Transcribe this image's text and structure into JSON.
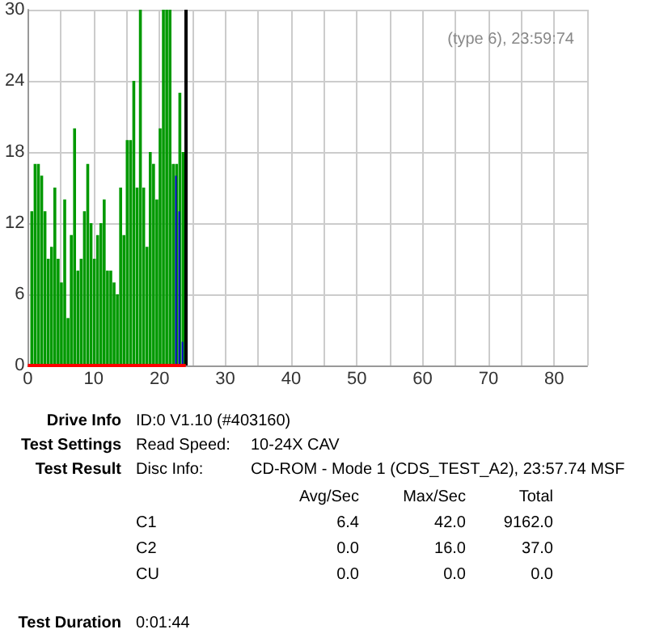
{
  "chart_data": {
    "type": "bar",
    "xlim": [
      0,
      85
    ],
    "ylim": [
      0,
      30
    ],
    "xticks": [
      0,
      {
        "value": 5,
        "label": null
      },
      10,
      {
        "value": 15,
        "label": null
      },
      20,
      {
        "value": 25,
        "label": null
      },
      30,
      {
        "value": 35,
        "label": null
      },
      40,
      {
        "value": 45,
        "label": null
      },
      50,
      {
        "value": 55,
        "label": null
      },
      60,
      {
        "value": 65,
        "label": null
      },
      70,
      {
        "value": 75,
        "label": null
      },
      80,
      {
        "value": 85,
        "label": null
      }
    ],
    "yticks": [
      0,
      6,
      12,
      18,
      24,
      30
    ],
    "grid": true,
    "series": [
      {
        "color": "#009900",
        "x": [
          0.5,
          1,
          1.5,
          2,
          2.5,
          3,
          3.5,
          4,
          4.5,
          5,
          5.5,
          6,
          6.5,
          7,
          7.5,
          8,
          8.5,
          9,
          9.5,
          10,
          10.5,
          11,
          11.5,
          12,
          12.5,
          13,
          13.5,
          14,
          14.5,
          15,
          15.5,
          16,
          16.5,
          17,
          17.5,
          18,
          18.5,
          19,
          19.5,
          20,
          20.5,
          21,
          21.5,
          22,
          22.5,
          23,
          23.5
        ],
        "values": [
          13,
          17,
          17,
          16,
          13,
          9,
          10,
          15,
          9,
          7,
          14,
          4,
          11,
          20,
          8,
          9,
          13,
          17,
          12,
          9,
          11,
          12,
          14,
          8,
          8,
          7,
          6,
          15,
          11,
          19,
          19,
          24,
          15,
          30,
          15,
          10,
          18,
          17,
          14,
          20,
          30,
          30,
          30,
          17,
          17,
          23,
          18
        ]
      },
      {
        "color": "#0000cc",
        "x": [
          22.5,
          23,
          23.5
        ],
        "values": [
          16,
          13,
          2
        ]
      },
      {
        "type": "line",
        "color": "#ff0000",
        "x": [
          0,
          24
        ],
        "values": [
          0,
          0
        ],
        "marker": "none"
      }
    ],
    "ref_lines": [
      {
        "axis": "x",
        "value": 24,
        "color": "#000000"
      }
    ],
    "annotations": [
      "(type 6), 23:59:74",
      "Drive Info",
      "ID:0 V1.10 (#403160)",
      "Test Settings",
      "Read Speed:",
      "10-24X CAV",
      "Test Result",
      "Disc Info:",
      "CD-ROM - Mode 1 (CDS_TEST_A2), 23:57.74 MSF",
      "Avg/Sec",
      "Max/Sec",
      "Total",
      "C1",
      "6.4",
      "42.0",
      "9162.0",
      "C2",
      "0.0",
      "16.0",
      "37.0",
      "CU",
      "0.0",
      "0.0",
      "0.0",
      "Test Duration",
      "0:01:44"
    ]
  }
}
